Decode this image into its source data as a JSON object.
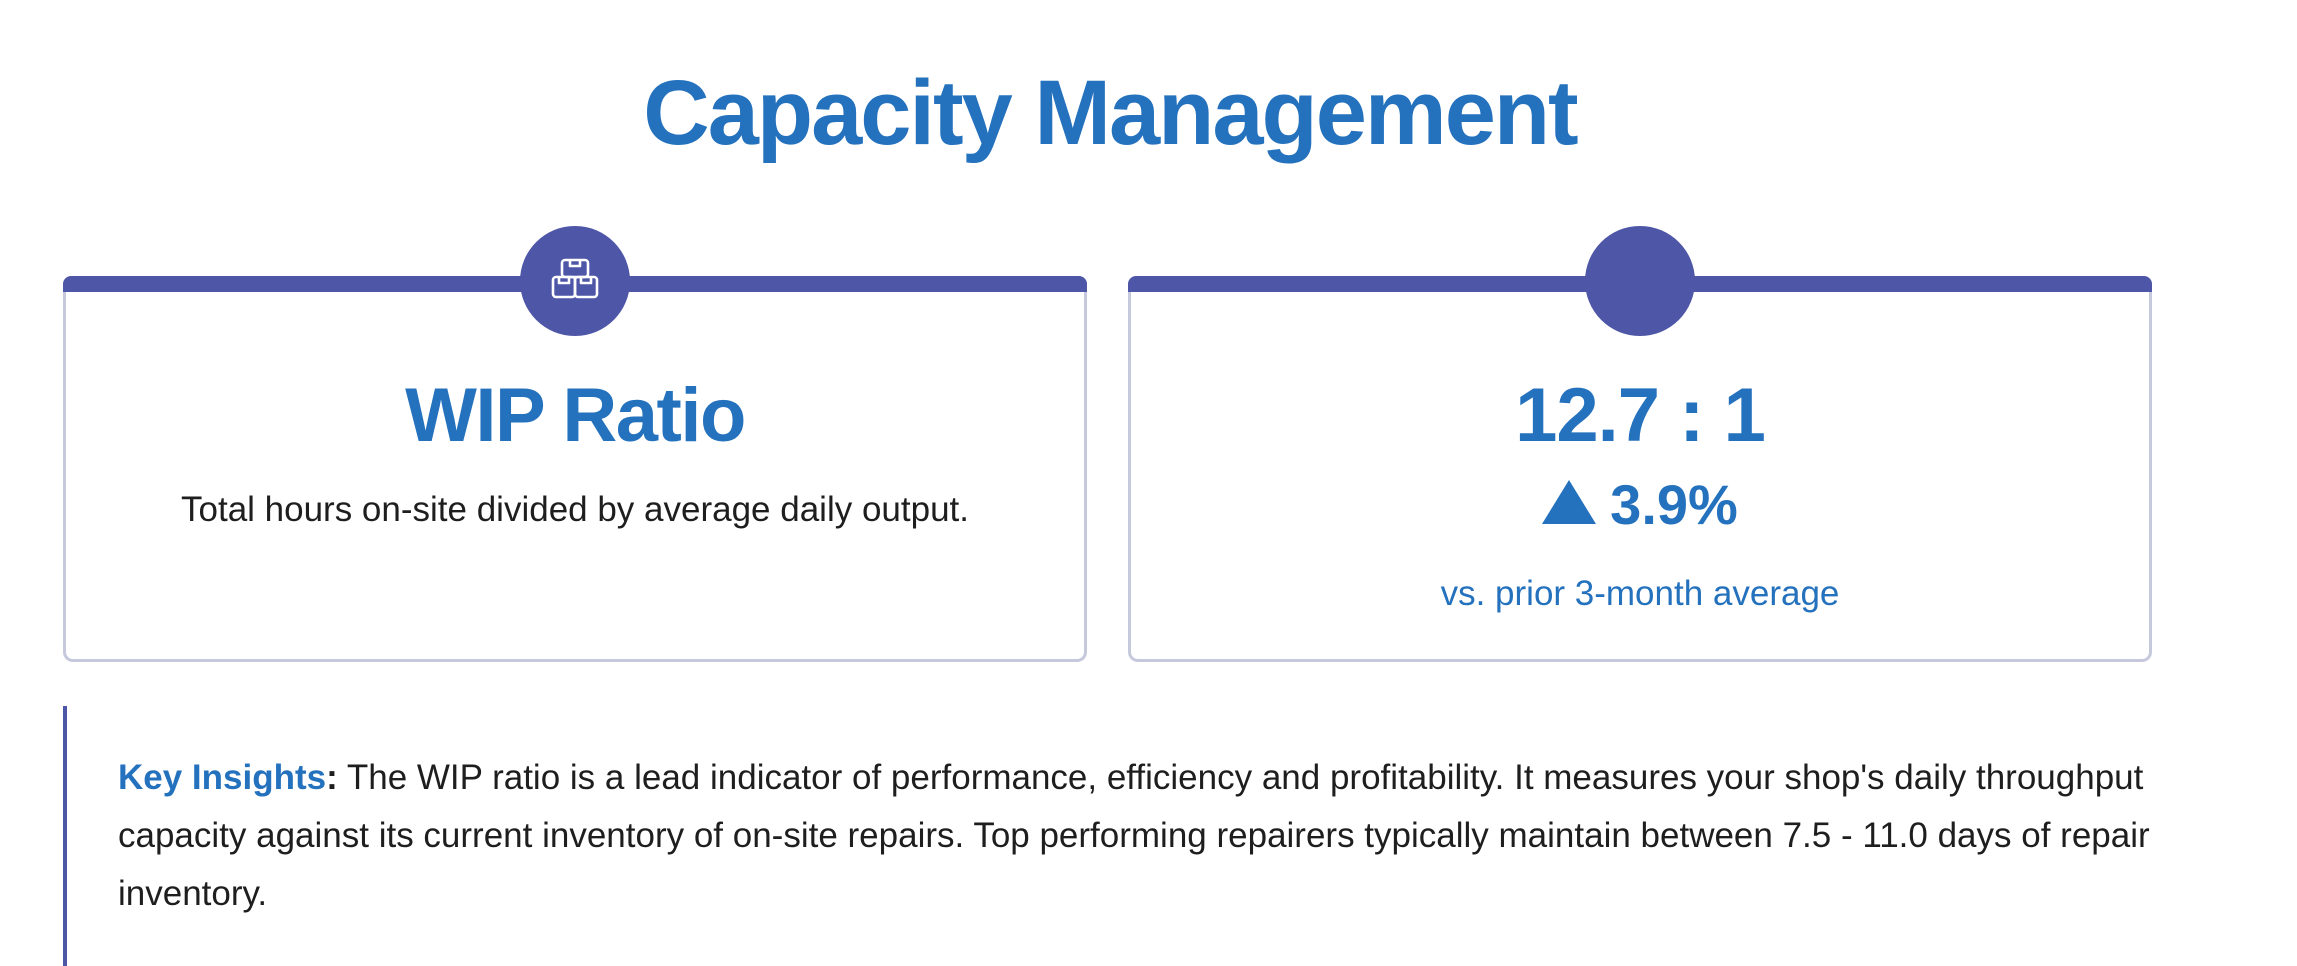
{
  "page": {
    "title": "Capacity Management"
  },
  "metric_card": {
    "icon": "boxes-icon",
    "title": "WIP Ratio",
    "description": "Total hours on-site divided by average daily output."
  },
  "kpi_card": {
    "value": "12.7 : 1",
    "change_icon": "triangle-up-icon",
    "change": "3.9%",
    "comparison": "vs. prior 3-month average"
  },
  "insights": {
    "label": "Key Insights",
    "colon": ":",
    "text": "The WIP ratio is a lead indicator of performance, efficiency and profitability. It measures your shop's daily throughput capacity against its current inventory of on-site repairs. Top performing repairers typically maintain between 7.5 - 11.0 days of repair inventory."
  },
  "colors": {
    "accent": "#2471bd",
    "brand": "#4e56a7",
    "border": "#c6c8dc",
    "text": "#1e1e1e"
  }
}
